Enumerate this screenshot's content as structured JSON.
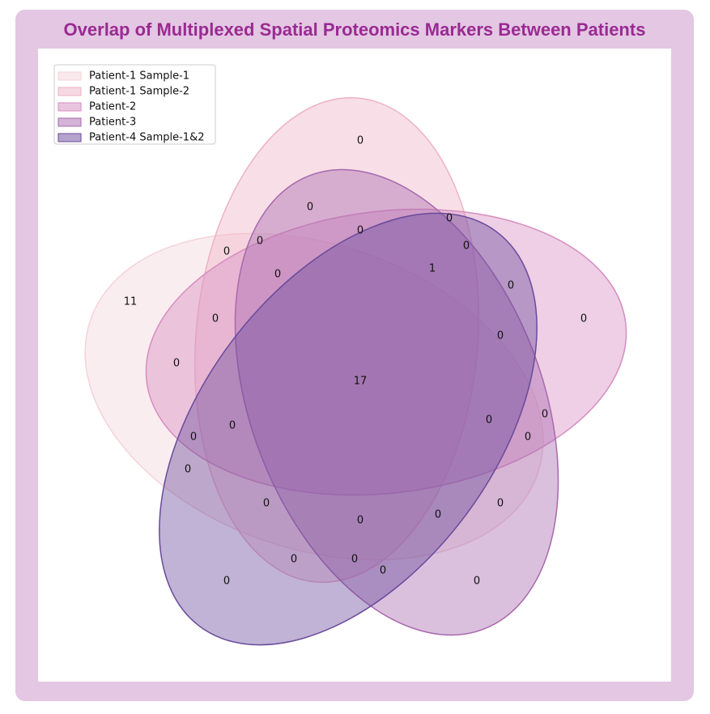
{
  "chart_data": {
    "type": "venn",
    "title": "Overlap of Multiplexed Spatial Proteomics Markers Between Patients",
    "series": [
      {
        "name": "Patient-1 Sample-1",
        "color": "#f4d3d9"
      },
      {
        "name": "Patient-1 Sample-2",
        "color": "#eeb2c6"
      },
      {
        "name": "Patient-2",
        "color": "#d68cc0"
      },
      {
        "name": "Patient-3",
        "color": "#a868ad"
      },
      {
        "name": "Patient-4 Sample-1&2",
        "color": "#6a4a9c"
      }
    ],
    "values": [
      0,
      0,
      0,
      0,
      0,
      0,
      0,
      1,
      0,
      11,
      0,
      0,
      0,
      0,
      0,
      17,
      0,
      0,
      0,
      0,
      0,
      0,
      0,
      0,
      0,
      0,
      0,
      0,
      0,
      0,
      0
    ],
    "legend": "upper left"
  }
}
